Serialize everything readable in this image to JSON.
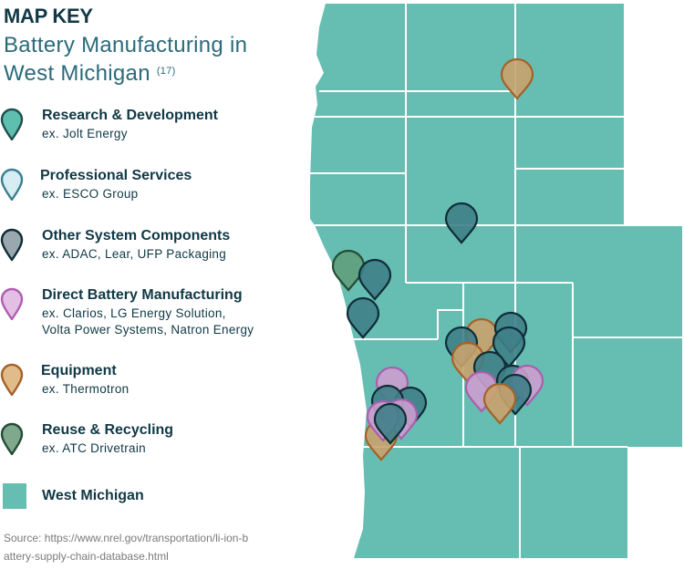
{
  "title": "MAP KEY",
  "subtitle_line1": "Battery Manufacturing in",
  "subtitle_line2": "West Michigan",
  "subtitle_ref": "(17)",
  "legend": [
    {
      "name": "Research & Development",
      "example": "ex. Jolt Energy",
      "color": "#5fbfae",
      "stroke": "#1f4f50"
    },
    {
      "name": "Professional Services",
      "example": "ex. ESCO Group",
      "color": "#d6edf1",
      "stroke": "#3a7f93"
    },
    {
      "name": "Other System Components",
      "example": "ex. ADAC, Lear, UFP Packaging",
      "color": "#9aa7ae",
      "stroke": "#0f2d37"
    },
    {
      "name": "Direct Battery Manufacturing",
      "example": "ex. Clarios, LG Energy Solution,",
      "example2": "Volta Power Systems, Natron Energy",
      "color": "#e3bfe3",
      "stroke": "#b35cb3"
    },
    {
      "name": "Equipment",
      "example": "ex. Thermotron",
      "color": "#e2bb8a",
      "stroke": "#a4622a"
    },
    {
      "name": "Reuse & Recycling",
      "example": "ex. ATC Drivetrain",
      "color": "#7fa88c",
      "stroke": "#234d34"
    }
  ],
  "region_label": "West Michigan",
  "region_color": "#66bdb1",
  "source_text": "Source: https://www.nrel.gov/transportation/li-ion-battery-supply-chain-database.html"
}
